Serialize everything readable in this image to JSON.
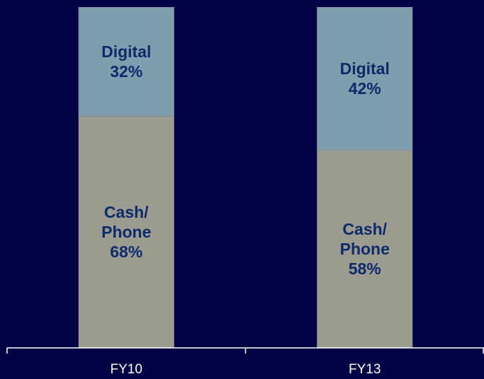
{
  "chart_data": {
    "type": "stacked_bar",
    "categories": [
      "FY10",
      "FY13"
    ],
    "series": [
      {
        "name": "Cash/\nPhone",
        "color": "#9b9b8f",
        "values": [
          68,
          58
        ],
        "value_labels": [
          "68%",
          "58%"
        ]
      },
      {
        "name": "Digital",
        "color": "#7f9ead",
        "values": [
          32,
          42
        ],
        "value_labels": [
          "32%",
          "42%"
        ]
      }
    ],
    "ylim": [
      0,
      100
    ]
  }
}
